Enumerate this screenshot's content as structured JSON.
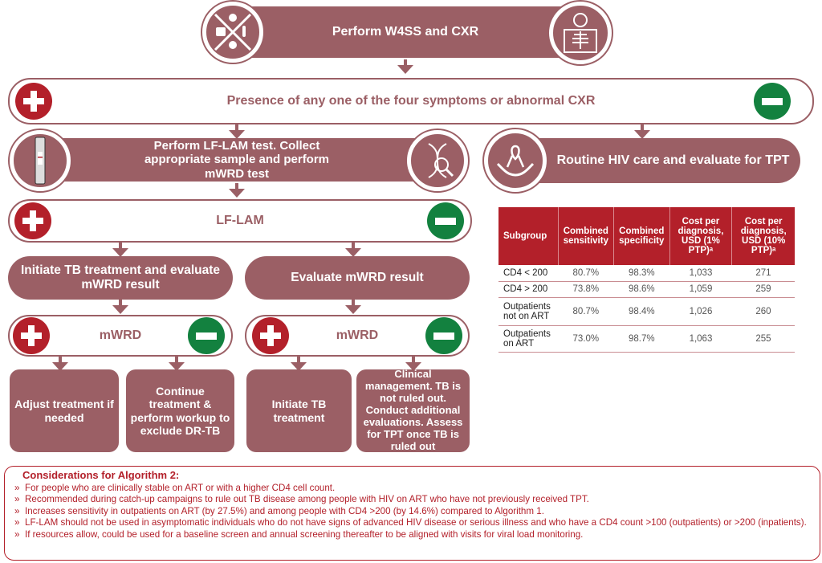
{
  "colors": {
    "mauve": "#9b5f65",
    "positive": "#b3202a",
    "negative": "#13813f"
  },
  "step1": {
    "label": "Perform W4SS and CXR",
    "icons": [
      "symptoms-icon",
      "chest-xray-icon"
    ]
  },
  "decision1": {
    "label": "Presence of any one of the four symptoms or abnormal CXR"
  },
  "step2": {
    "label": "Perform LF-LAM test. Collect appropriate sample and perform mWRD test",
    "icons": [
      "lf-lam-strip-icon",
      "dna-search-icon"
    ]
  },
  "routine": {
    "label": "Routine HIV care and evaluate for TPT",
    "icon": "hands-ribbon-icon"
  },
  "decision2": {
    "label": "LF-LAM"
  },
  "left_branch": {
    "label": "Initiate TB treatment and evaluate mWRD result",
    "decision": "mWRD",
    "pos_outcome": "Adjust treatment if needed",
    "neg_outcome": "Continue treatment & perform workup to exclude DR-TB"
  },
  "right_branch": {
    "label": "Evaluate mWRD result",
    "decision": "mWRD",
    "pos_outcome": "Initiate TB treatment",
    "neg_outcome": "Clinical management. TB is not ruled out. Conduct additional evaluations. Assess for TPT once TB is ruled out"
  },
  "table": {
    "headers": [
      "Subgroup",
      "Combined sensitivity",
      "Combined specificity",
      "Cost per diagnosis, USD (1% PTP)ᵃ",
      "Cost per diagnosis, USD (10% PTP)ᵃ"
    ],
    "rows": [
      [
        "CD4 < 200",
        "80.7%",
        "98.3%",
        "1,033",
        "271"
      ],
      [
        "CD4 > 200",
        "73.8%",
        "98.6%",
        "1,059",
        "259"
      ],
      [
        "Outpatients not on ART",
        "80.7%",
        "98.4%",
        "1,026",
        "260"
      ],
      [
        "Outpatients on ART",
        "73.0%",
        "98.7%",
        "1,063",
        "255"
      ]
    ]
  },
  "considerations": {
    "title": "Considerations for Algorithm 2:",
    "items": [
      "For people who are clinically stable on ART or with a higher CD4 cell count.",
      "Recommended during catch-up campaigns to rule out TB disease among people with HIV on ART who have not previously received TPT.",
      "Increases sensitivity in outpatients on ART (by 27.5%) and among people with CD4 >200 (by 14.6%) compared to Algorithm 1.",
      "LF-LAM should not be used in asymptomatic individuals who do not have signs of advanced HIV disease or serious illness and who have a CD4 count >100 (outpatients) or >200 (inpatients).",
      "If resources allow, could be used for a baseline screen and annual screening thereafter to be aligned with visits for viral load monitoring."
    ]
  }
}
